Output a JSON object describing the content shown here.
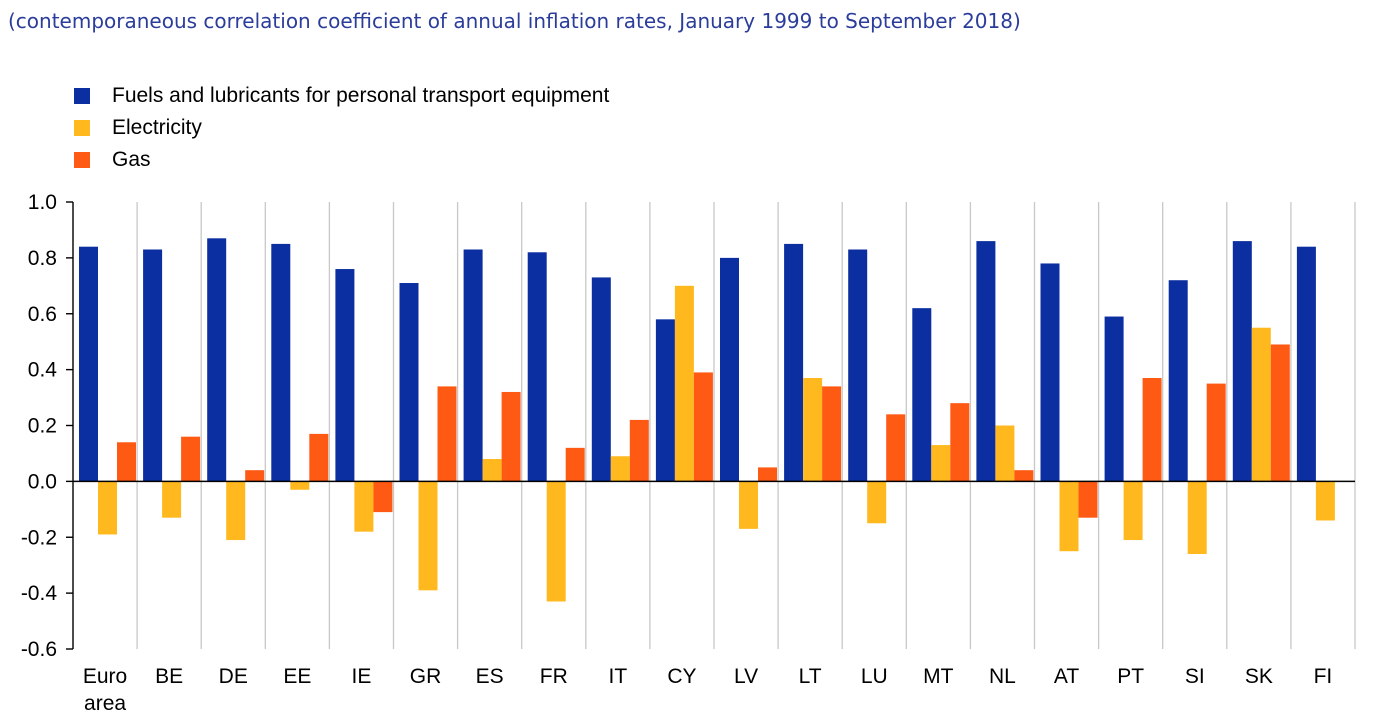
{
  "subtitle": "(contemporaneous correlation coefficient of annual inflation rates, January 1999 to September 2018)",
  "colors": {
    "fuels": "#0b2ea0",
    "electricity": "#ffb91f",
    "gas": "#ff5a14",
    "grid": "#c8c8c8",
    "axis": "#000000"
  },
  "legend": [
    {
      "label": "Fuels and lubricants for personal transport equipment",
      "color_key": "fuels"
    },
    {
      "label": "Electricity",
      "color_key": "electricity"
    },
    {
      "label": "Gas",
      "color_key": "gas"
    }
  ],
  "chart_data": {
    "type": "bar",
    "title": "",
    "subtitle": "(contemporaneous correlation coefficient of annual inflation rates, January 1999 to September 2018)",
    "xlabel": "",
    "ylabel": "",
    "ylim": [
      -0.6,
      1.0
    ],
    "yticks": [
      1.0,
      0.8,
      0.6,
      0.4,
      0.2,
      0.0,
      -0.2,
      -0.4,
      -0.6
    ],
    "ytick_labels": [
      "1.0",
      "0.8",
      "0.6",
      "0.4",
      "0.2",
      "0.0",
      "-0.2",
      "-0.4",
      "-0.6"
    ],
    "grid": "vertical separators between categories",
    "legend_position": "top-left",
    "categories": [
      [
        "Euro",
        "area"
      ],
      [
        "BE"
      ],
      [
        "DE"
      ],
      [
        "EE"
      ],
      [
        "IE"
      ],
      [
        "GR"
      ],
      [
        "ES"
      ],
      [
        "FR"
      ],
      [
        "IT"
      ],
      [
        "CY"
      ],
      [
        "LV"
      ],
      [
        "LT"
      ],
      [
        "LU"
      ],
      [
        "MT"
      ],
      [
        "NL"
      ],
      [
        "AT"
      ],
      [
        "PT"
      ],
      [
        "SI"
      ],
      [
        "SK"
      ],
      [
        "FI"
      ]
    ],
    "series": [
      {
        "name": "Fuels and lubricants for personal transport equipment",
        "values": [
          0.84,
          0.83,
          0.87,
          0.85,
          0.76,
          0.71,
          0.83,
          0.82,
          0.73,
          0.58,
          0.8,
          0.85,
          0.83,
          0.62,
          0.86,
          0.78,
          0.59,
          0.72,
          0.86,
          0.84
        ]
      },
      {
        "name": "Electricity",
        "values": [
          -0.19,
          -0.13,
          -0.21,
          -0.03,
          -0.18,
          -0.39,
          0.08,
          -0.43,
          0.09,
          0.7,
          -0.17,
          0.37,
          -0.15,
          0.13,
          0.2,
          -0.25,
          -0.21,
          -0.26,
          0.55,
          -0.14
        ]
      },
      {
        "name": "Gas",
        "values": [
          0.14,
          0.16,
          0.04,
          0.17,
          -0.11,
          0.34,
          0.32,
          0.12,
          0.22,
          0.39,
          0.05,
          0.34,
          0.24,
          0.28,
          0.04,
          -0.13,
          0.37,
          0.35,
          0.49,
          0.0
        ]
      }
    ]
  }
}
